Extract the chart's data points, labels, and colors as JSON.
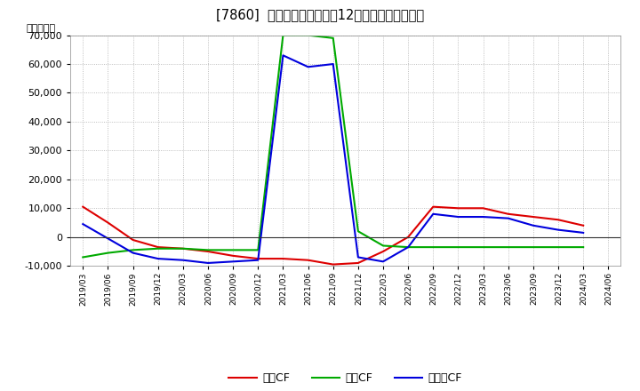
{
  "title": "[7860]  キャッシュフローの12か月移動合計の推移",
  "ylabel": "（百万円）",
  "background_color": "#ffffff",
  "plot_bg_color": "#ffffff",
  "grid_color": "#aaaaaa",
  "x_labels": [
    "2019/03",
    "2019/06",
    "2019/09",
    "2019/12",
    "2020/03",
    "2020/06",
    "2020/09",
    "2020/12",
    "2021/03",
    "2021/06",
    "2021/09",
    "2021/12",
    "2022/03",
    "2022/06",
    "2022/09",
    "2022/12",
    "2023/03",
    "2023/06",
    "2023/09",
    "2023/12",
    "2024/03",
    "2024/06"
  ],
  "eigyo_cf": [
    10500,
    5000,
    -1000,
    -3500,
    -4000,
    -5000,
    -6500,
    -7500,
    -7500,
    -8000,
    -9500,
    -9000,
    -5000,
    0,
    10500,
    10000,
    10000,
    8000,
    7000,
    6000,
    4000,
    null
  ],
  "toshi_cf": [
    -7000,
    -5500,
    -4500,
    -4000,
    -4000,
    -4500,
    -4500,
    -4500,
    70000,
    70000,
    69000,
    2000,
    -3000,
    -3500,
    -3500,
    -3500,
    -3500,
    -3500,
    -3500,
    -3500,
    -3500,
    null
  ],
  "free_cf": [
    4500,
    -500,
    -5500,
    -7500,
    -8000,
    -9000,
    -8500,
    -8000,
    63000,
    59000,
    60000,
    -7000,
    -8500,
    -3500,
    8000,
    7000,
    7000,
    6500,
    4000,
    2500,
    1500,
    null
  ],
  "eigyo_color": "#dd0000",
  "toshi_color": "#00aa00",
  "free_color": "#0000dd",
  "ylim": [
    -10000,
    70000
  ],
  "yticks": [
    -10000,
    0,
    10000,
    20000,
    30000,
    40000,
    50000,
    60000,
    70000
  ],
  "legend_labels": [
    "営業CF",
    "投資CF",
    "フリーCF"
  ],
  "line_width": 1.5
}
